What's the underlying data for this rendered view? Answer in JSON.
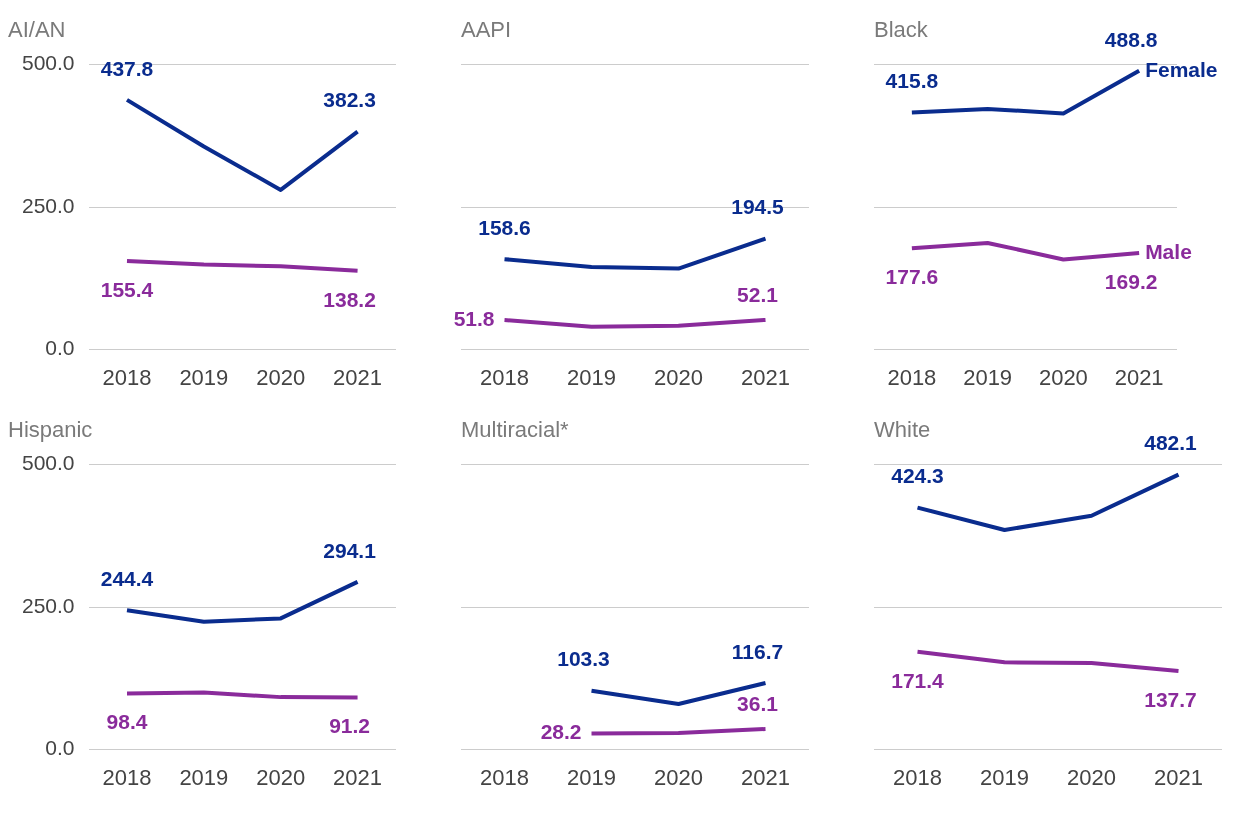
{
  "chart_data": [
    {
      "type": "line",
      "title": "AI/AN",
      "categories": [
        "2018",
        "2019",
        "2020",
        "2021"
      ],
      "ylim": [
        0,
        500
      ],
      "yticks": [
        {
          "value": 0,
          "label": "0.0"
        },
        {
          "value": 250,
          "label": "250.0"
        },
        {
          "value": 500,
          "label": "500.0"
        }
      ],
      "grid": "y",
      "marker": "none",
      "series": [
        {
          "color": "#0a2c8e",
          "values": [
            437.8,
            356,
            280,
            382.3
          ],
          "value_labels": [
            "437.8",
            null,
            null,
            "382.3"
          ]
        },
        {
          "color": "#8a2b9b",
          "values": [
            155.4,
            149,
            146,
            138.2
          ],
          "value_labels": [
            "155.4",
            null,
            null,
            "138.2"
          ]
        }
      ]
    },
    {
      "type": "line",
      "title": "AAPI",
      "categories": [
        "2018",
        "2019",
        "2020",
        "2021"
      ],
      "ylim": [
        0,
        500
      ],
      "yticks": [
        0,
        250,
        500
      ],
      "grid": "y",
      "marker": "none",
      "tick_labels": "x",
      "series": [
        {
          "color": "#0a2c8e",
          "values": [
            158.6,
            145,
            142,
            194.5
          ],
          "value_labels": [
            "158.6",
            null,
            null,
            "194.5"
          ]
        },
        {
          "color": "#8a2b9b",
          "values": [
            51.8,
            40,
            42,
            52.1
          ],
          "value_labels": [
            "51.8",
            null,
            null,
            "52.1"
          ]
        }
      ]
    },
    {
      "type": "line",
      "title": "Black",
      "categories": [
        "2018",
        "2019",
        "2020",
        "2021"
      ],
      "ylim": [
        0,
        500
      ],
      "yticks": [
        0,
        250,
        500
      ],
      "grid": "y",
      "marker": "none",
      "tick_labels": "x",
      "series": [
        {
          "name": "Female",
          "color": "#0a2c8e",
          "values": [
            415.8,
            422,
            414,
            488.8
          ],
          "value_labels": [
            "415.8",
            null,
            null,
            "488.8"
          ]
        },
        {
          "name": "Male",
          "color": "#8a2b9b",
          "values": [
            177.6,
            187,
            158,
            169.2
          ],
          "value_labels": [
            "177.6",
            null,
            null,
            "169.2"
          ]
        }
      ]
    },
    {
      "type": "line",
      "title": "Hispanic",
      "categories": [
        "2018",
        "2019",
        "2020",
        "2021"
      ],
      "ylim": [
        0,
        500
      ],
      "yticks": [
        {
          "value": 0,
          "label": "0.0"
        },
        {
          "value": 250,
          "label": "250.0"
        },
        {
          "value": 500,
          "label": "500.0"
        }
      ],
      "grid": "y",
      "marker": "none",
      "series": [
        {
          "color": "#0a2c8e",
          "values": [
            244.4,
            224,
            230,
            294.1
          ],
          "value_labels": [
            "244.4",
            null,
            null,
            "294.1"
          ]
        },
        {
          "color": "#8a2b9b",
          "values": [
            98.4,
            100,
            92,
            91.2
          ],
          "value_labels": [
            "98.4",
            null,
            null,
            "91.2"
          ]
        }
      ]
    },
    {
      "type": "line",
      "title": "Multiracial*",
      "categories": [
        "2018",
        "2019",
        "2020",
        "2021"
      ],
      "ylim": [
        0,
        500
      ],
      "yticks": [
        0,
        250,
        500
      ],
      "grid": "y",
      "marker": "none",
      "tick_labels": "x",
      "series": [
        {
          "color": "#0a2c8e",
          "values": [
            null,
            103.3,
            80,
            116.7
          ],
          "value_labels": [
            null,
            "103.3",
            null,
            "116.7"
          ]
        },
        {
          "color": "#8a2b9b",
          "values": [
            null,
            28.2,
            29,
            36.1
          ],
          "value_labels": [
            null,
            "28.2",
            null,
            "36.1"
          ]
        }
      ]
    },
    {
      "type": "line",
      "title": "White",
      "categories": [
        "2018",
        "2019",
        "2020",
        "2021"
      ],
      "ylim": [
        0,
        500
      ],
      "yticks": [
        0,
        250,
        500
      ],
      "grid": "y",
      "marker": "none",
      "tick_labels": "x",
      "series": [
        {
          "color": "#0a2c8e",
          "values": [
            424.3,
            385,
            410,
            482.1
          ],
          "value_labels": [
            "424.3",
            null,
            null,
            "482.1"
          ]
        },
        {
          "color": "#8a2b9b",
          "values": [
            171.4,
            153,
            152,
            137.7
          ],
          "value_labels": [
            "171.4",
            null,
            null,
            "137.7"
          ]
        }
      ]
    }
  ]
}
